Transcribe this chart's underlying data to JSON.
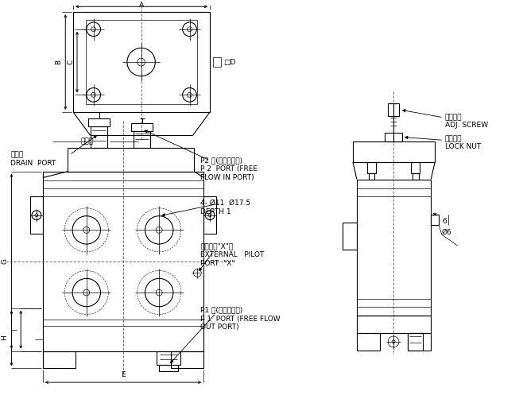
{
  "bg_color": "#ffffff",
  "line_color": "#000000",
  "annotations": {
    "drain_port_cn": "洩流口",
    "drain_port_en": "DRAIN  PORT",
    "p2_cn": "P2 口(自由流入口)",
    "p2_en1": "P 2  PORT (FREE",
    "p2_en2": "FLOW IN PORT)",
    "hole_spec": "4- Ø11  Ø17.5",
    "depth": "DEPTH 1",
    "ext_pilot_cn": "外部引導\"X\"口",
    "ext_pilot_en1": "EXTERNAL   PILOT",
    "ext_pilot_en2": "PORT  \"X\"",
    "p1_cn": "P1 口(自由流出口)",
    "p1_en1": "P 1  PORT (FREE FLOW",
    "p1_en2": "OUT PORT)",
    "adj_screw_cn": "調節螺絲",
    "adj_screw_en": "ADJ. SCREW",
    "lock_nut_cn": "固定螺帽",
    "lock_nut_en": "LOCK NUT",
    "dim_6": "6",
    "dim_phi6": "Ø6",
    "dim_A": "A",
    "dim_B": "B",
    "dim_C": "C",
    "dim_D": "□D",
    "dim_E": "E",
    "dim_G": "G",
    "dim_H": "H",
    "dim_I": "I"
  }
}
